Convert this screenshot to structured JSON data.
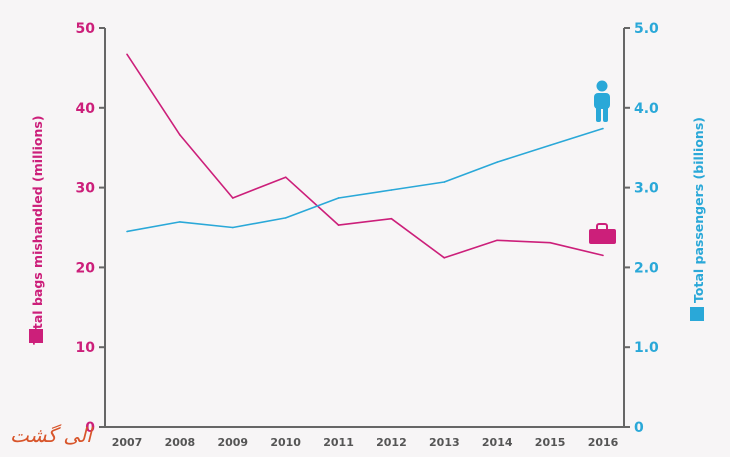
{
  "chart_data": {
    "type": "line",
    "x": [
      "2007",
      "2008",
      "2009",
      "2010",
      "2011",
      "2012",
      "2013",
      "2014",
      "2015",
      "2016"
    ],
    "series": [
      {
        "axis": "left",
        "color": "#cc1f7a",
        "values": [
          46.7,
          36.6,
          28.7,
          31.3,
          25.3,
          26.1,
          21.2,
          23.4,
          23.1,
          21.5
        ]
      },
      {
        "axis": "right",
        "color": "#2aa8d8",
        "values": [
          2.45,
          2.57,
          2.5,
          2.62,
          2.87,
          2.97,
          3.07,
          3.32,
          3.53,
          3.74
        ]
      }
    ],
    "yleft": {
      "label": "Total bags mishandled (millions)",
      "ticks": [
        "0",
        "10",
        "20",
        "30",
        "40",
        "50"
      ],
      "range": [
        0,
        50
      ]
    },
    "yright": {
      "label": "Total passengers (billions)",
      "ticks": [
        "0",
        "1.0",
        "2.0",
        "3.0",
        "4.0",
        "5.0"
      ],
      "range": [
        0,
        5
      ]
    },
    "grid": false,
    "icons": {
      "passenger": "person-icon",
      "bags": "suitcase-icon"
    },
    "colors": {
      "bags": "#cc1f7a",
      "passengers": "#2aa8d8",
      "axis": "#666666"
    }
  },
  "watermark": "الی گشت"
}
